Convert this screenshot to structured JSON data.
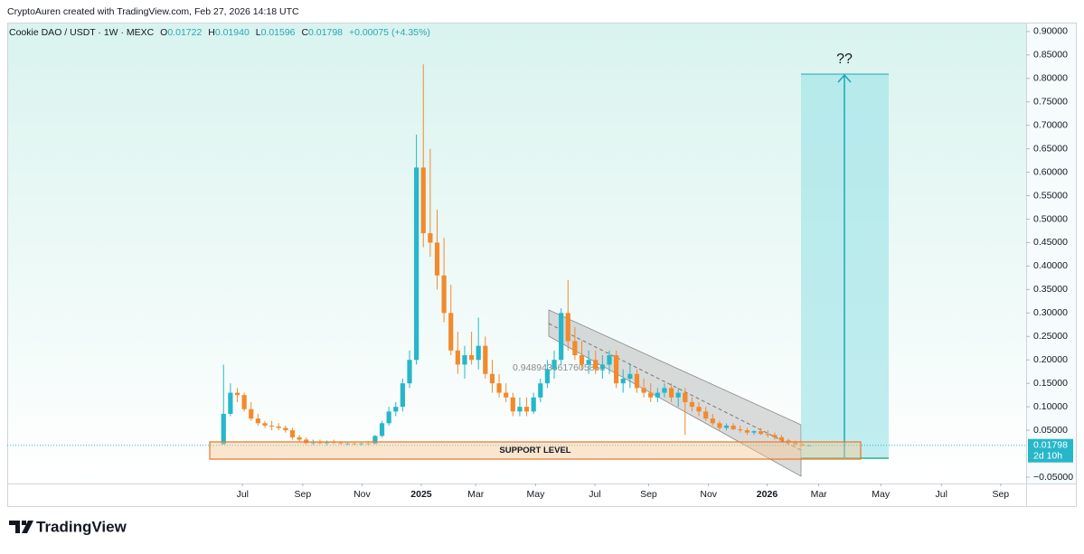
{
  "attribution": "CryptoAuren created with TradingView.com, Feb 27, 2026 14:18 UTC",
  "logo": "TradingView",
  "chart_data": {
    "type": "candlestick",
    "legend": {
      "symbol": "Cookie DAO / USDT · 1W · MEXC",
      "o_key": "O",
      "o": "0.01722",
      "h_key": "H",
      "h": "0.01940",
      "l_key": "L",
      "l": "0.01596",
      "c_key": "C",
      "c": "0.01798",
      "change": "+0.00075 (+4.35%)"
    },
    "up_color": "#26b7c9",
    "down_color": "#f28a2c",
    "open": [
      0.02,
      0.085,
      0.13,
      0.125,
      0.095,
      0.075,
      0.065,
      0.06,
      0.058,
      0.055,
      0.05,
      0.035,
      0.03,
      0.022,
      0.024,
      0.022,
      0.025,
      0.023,
      0.021,
      0.022,
      0.02,
      0.022,
      0.021,
      0.038,
      0.065,
      0.09,
      0.1,
      0.15,
      0.2,
      0.61,
      0.47,
      0.45,
      0.38,
      0.3,
      0.22,
      0.19,
      0.21,
      0.2,
      0.23,
      0.17,
      0.15,
      0.13,
      0.12,
      0.09,
      0.1,
      0.09,
      0.12,
      0.15,
      0.18,
      0.2,
      0.3,
      0.24,
      0.21,
      0.19,
      0.2,
      0.18,
      0.19,
      0.21,
      0.15,
      0.16,
      0.17,
      0.14,
      0.13,
      0.12,
      0.13,
      0.14,
      0.12,
      0.13,
      0.11,
      0.1,
      0.09,
      0.075,
      0.065,
      0.055,
      0.06,
      0.052,
      0.05,
      0.045,
      0.048,
      0.042,
      0.04,
      0.035,
      0.028,
      0.024,
      0.02,
      0.01722
    ],
    "high": [
      0.19,
      0.15,
      0.14,
      0.13,
      0.11,
      0.085,
      0.07,
      0.07,
      0.065,
      0.06,
      0.055,
      0.04,
      0.035,
      0.03,
      0.03,
      0.028,
      0.03,
      0.027,
      0.025,
      0.026,
      0.024,
      0.027,
      0.04,
      0.07,
      0.1,
      0.11,
      0.16,
      0.22,
      0.68,
      0.83,
      0.65,
      0.52,
      0.46,
      0.36,
      0.26,
      0.23,
      0.26,
      0.29,
      0.25,
      0.2,
      0.17,
      0.15,
      0.13,
      0.12,
      0.12,
      0.13,
      0.16,
      0.2,
      0.22,
      0.31,
      0.37,
      0.27,
      0.24,
      0.22,
      0.22,
      0.21,
      0.22,
      0.22,
      0.18,
      0.19,
      0.18,
      0.16,
      0.15,
      0.14,
      0.15,
      0.15,
      0.14,
      0.14,
      0.12,
      0.11,
      0.1,
      0.085,
      0.07,
      0.065,
      0.065,
      0.06,
      0.055,
      0.05,
      0.055,
      0.05,
      0.045,
      0.04,
      0.032,
      0.028,
      0.023,
      0.0194
    ],
    "low": [
      0.02,
      0.08,
      0.11,
      0.09,
      0.07,
      0.06,
      0.055,
      0.05,
      0.05,
      0.045,
      0.03,
      0.025,
      0.02,
      0.018,
      0.02,
      0.018,
      0.02,
      0.019,
      0.018,
      0.018,
      0.017,
      0.019,
      0.02,
      0.035,
      0.06,
      0.08,
      0.09,
      0.14,
      0.19,
      0.44,
      0.42,
      0.35,
      0.28,
      0.21,
      0.17,
      0.16,
      0.19,
      0.18,
      0.16,
      0.13,
      0.12,
      0.11,
      0.08,
      0.08,
      0.08,
      0.085,
      0.11,
      0.14,
      0.16,
      0.19,
      0.22,
      0.2,
      0.18,
      0.17,
      0.17,
      0.16,
      0.17,
      0.14,
      0.13,
      0.14,
      0.13,
      0.12,
      0.11,
      0.11,
      0.12,
      0.11,
      0.1,
      0.04,
      0.09,
      0.08,
      0.07,
      0.06,
      0.05,
      0.05,
      0.05,
      0.045,
      0.04,
      0.04,
      0.04,
      0.035,
      0.03,
      0.025,
      0.02,
      0.018,
      0.016,
      0.01596
    ],
    "close": [
      0.085,
      0.13,
      0.125,
      0.095,
      0.075,
      0.065,
      0.06,
      0.058,
      0.055,
      0.05,
      0.035,
      0.03,
      0.022,
      0.024,
      0.022,
      0.025,
      0.023,
      0.021,
      0.022,
      0.02,
      0.022,
      0.021,
      0.038,
      0.065,
      0.09,
      0.1,
      0.15,
      0.2,
      0.61,
      0.47,
      0.45,
      0.38,
      0.3,
      0.22,
      0.19,
      0.21,
      0.2,
      0.23,
      0.17,
      0.15,
      0.13,
      0.12,
      0.09,
      0.1,
      0.09,
      0.12,
      0.15,
      0.18,
      0.2,
      0.3,
      0.24,
      0.21,
      0.19,
      0.2,
      0.18,
      0.19,
      0.21,
      0.15,
      0.16,
      0.17,
      0.14,
      0.13,
      0.12,
      0.13,
      0.14,
      0.12,
      0.13,
      0.11,
      0.1,
      0.09,
      0.075,
      0.065,
      0.055,
      0.06,
      0.052,
      0.05,
      0.045,
      0.048,
      0.042,
      0.04,
      0.035,
      0.028,
      0.024,
      0.02,
      0.017,
      0.01798
    ],
    "xlim": [
      -31.4,
      116.5
    ],
    "xticks": [
      {
        "value": 2.76,
        "label": "Jul"
      },
      {
        "value": 11.5,
        "label": "Sep"
      },
      {
        "value": 20.1,
        "label": "Nov"
      },
      {
        "value": 28.7,
        "label": "2025"
      },
      {
        "value": 36.6,
        "label": "Mar"
      },
      {
        "value": 45.3,
        "label": "May"
      },
      {
        "value": 53.9,
        "label": "Jul"
      },
      {
        "value": 61.7,
        "label": "Sep"
      },
      {
        "value": 70.4,
        "label": "Nov"
      },
      {
        "value": 78.9,
        "label": "2026"
      },
      {
        "value": 86.4,
        "label": "Mar"
      },
      {
        "value": 95.4,
        "label": "May"
      },
      {
        "value": 104.2,
        "label": "Jul"
      },
      {
        "value": 112.8,
        "label": "Sep"
      }
    ],
    "ylim": [
      -0.0635,
      0.919
    ],
    "yticks": [
      {
        "value": 0.9,
        "label": "0.90000"
      },
      {
        "value": 0.85,
        "label": "0.85000"
      },
      {
        "value": 0.8,
        "label": "0.80000"
      },
      {
        "value": 0.75,
        "label": "0.75000"
      },
      {
        "value": 0.7,
        "label": "0.70000"
      },
      {
        "value": 0.65,
        "label": "0.65000"
      },
      {
        "value": 0.6,
        "label": "0.60000"
      },
      {
        "value": 0.55,
        "label": "0.55000"
      },
      {
        "value": 0.5,
        "label": "0.50000"
      },
      {
        "value": 0.45,
        "label": "0.45000"
      },
      {
        "value": 0.4,
        "label": "0.40000"
      },
      {
        "value": 0.35,
        "label": "0.35000"
      },
      {
        "value": 0.3,
        "label": "0.30000"
      },
      {
        "value": 0.25,
        "label": "0.25000"
      },
      {
        "value": 0.2,
        "label": "0.20000"
      },
      {
        "value": 0.15,
        "label": "0.15000"
      },
      {
        "value": 0.1,
        "label": "0.10000"
      },
      {
        "value": 0.05,
        "label": "0.05000"
      },
      {
        "value": -0.05,
        "label": "−0.05000"
      }
    ],
    "last_price": {
      "value": 0.01798,
      "label": "0.01798",
      "countdown": "2d 10h"
    },
    "annotations": {
      "support": "SUPPORT LEVEL",
      "target": "??",
      "channel": "0.9489436617605851"
    }
  }
}
